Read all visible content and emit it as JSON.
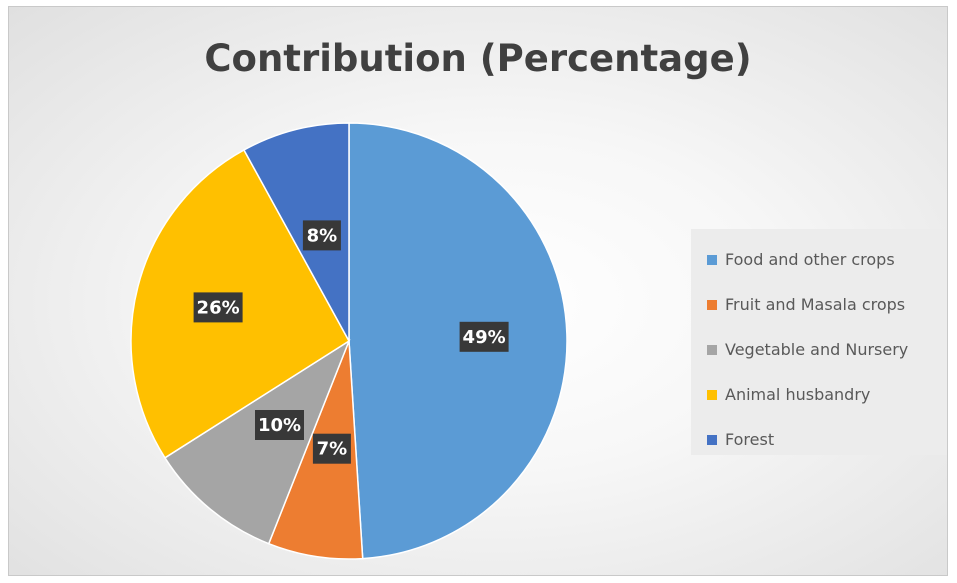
{
  "chart_data": {
    "type": "pie",
    "title": "Contribution (Percentage)",
    "categories": [
      "Food and other crops",
      "Fruit and Masala crops",
      "Vegetable and Nursery",
      "Animal husbandry",
      "Forest"
    ],
    "values": [
      49,
      7,
      10,
      26,
      8
    ],
    "data_labels": [
      "49%",
      "7%",
      "10%",
      "26%",
      "8%"
    ],
    "colors": [
      "#5b9bd5",
      "#ed7d31",
      "#a5a5a5",
      "#ffc000",
      "#4472c4"
    ],
    "legend_position": "right",
    "start_angle": "12 o'clock",
    "direction": "clockwise"
  },
  "legend": {
    "items": [
      {
        "label": "Food and other crops",
        "color": "#5b9bd5"
      },
      {
        "label": "Fruit and Masala crops",
        "color": "#ed7d31"
      },
      {
        "label": "Vegetable and Nursery",
        "color": "#a5a5a5"
      },
      {
        "label": "Animal husbandry",
        "color": "#ffc000"
      },
      {
        "label": "Forest",
        "color": "#4472c4"
      }
    ]
  }
}
